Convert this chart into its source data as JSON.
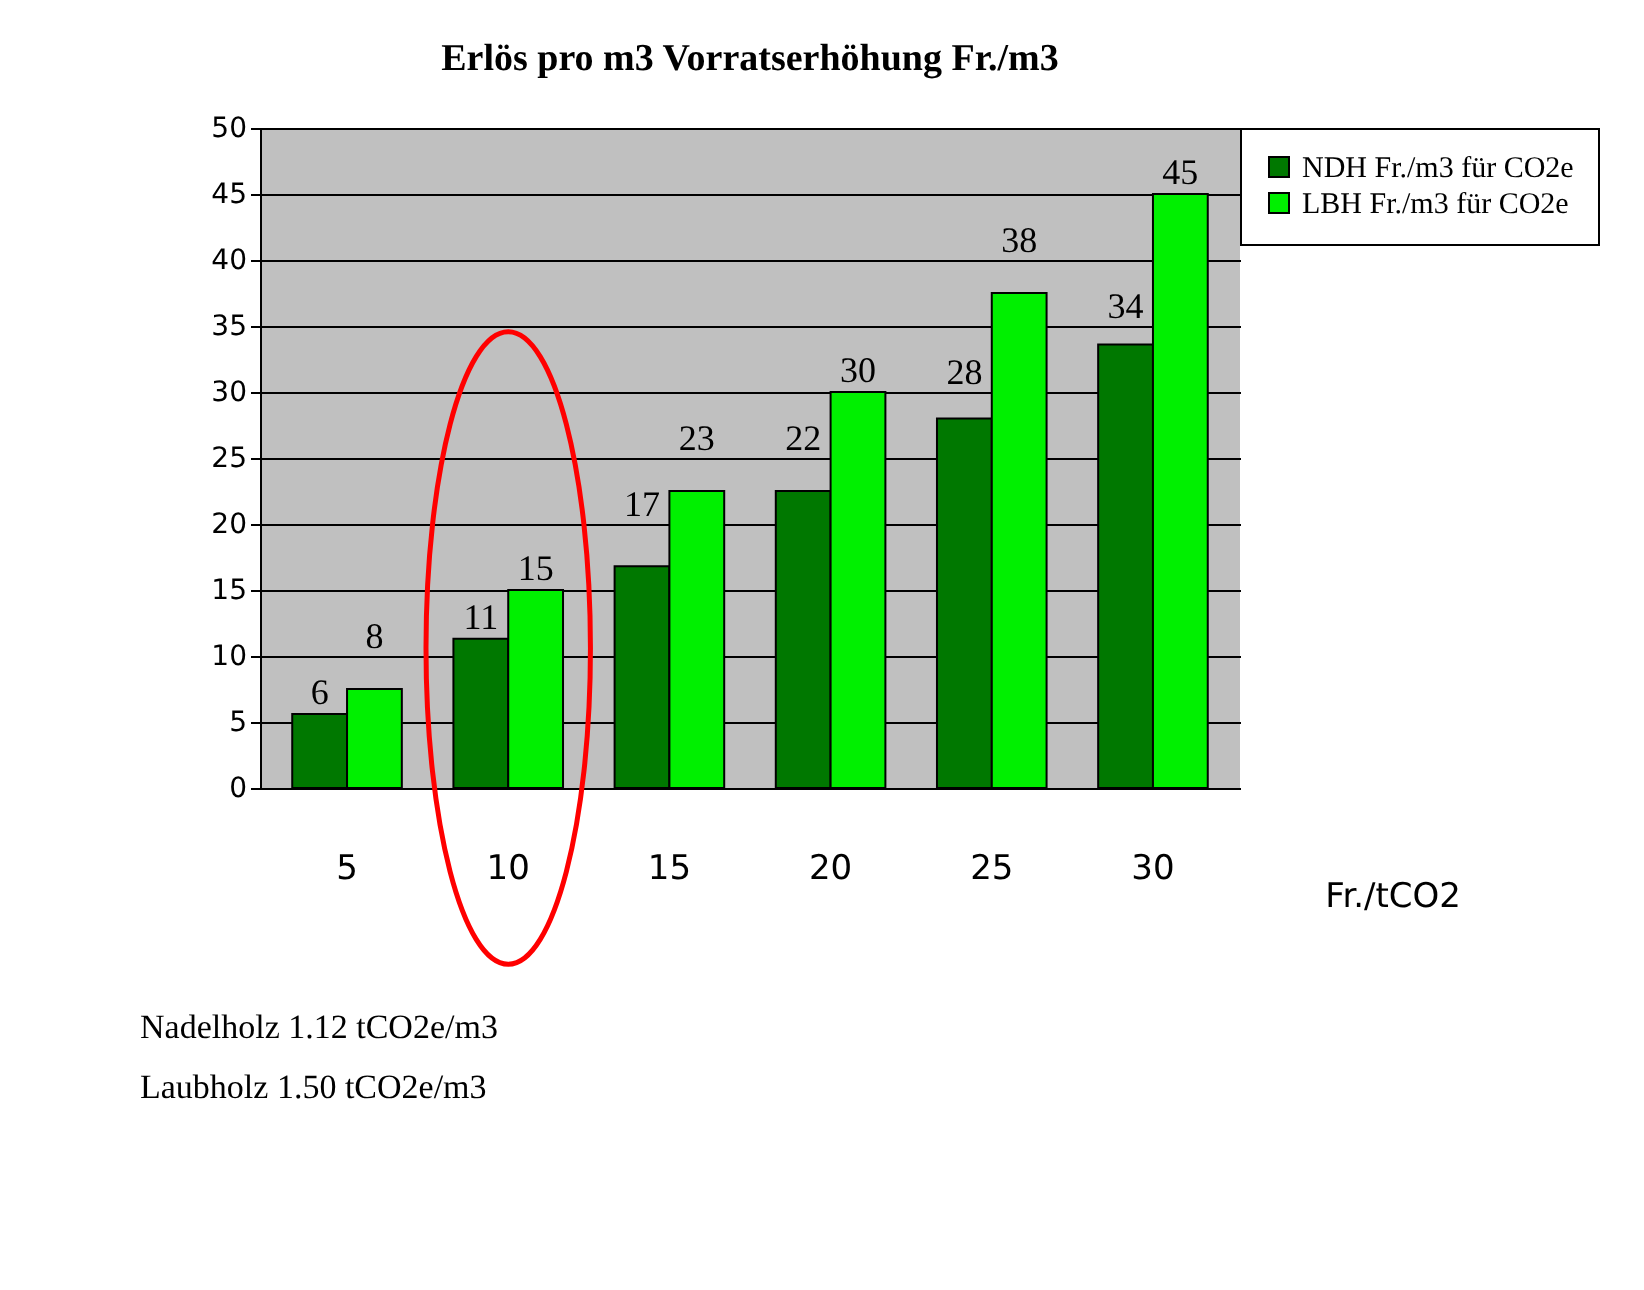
{
  "chart_data": {
    "type": "bar",
    "title": "Erlös pro m3 Vorratserhöhung Fr./m3",
    "xlabel": "Fr./tCO2",
    "categories": [
      "5",
      "10",
      "15",
      "20",
      "25",
      "30"
    ],
    "series": [
      {
        "name": "NDH Fr./m3 für CO2e",
        "color": "#007800",
        "values": [
          5.6,
          11.3,
          16.8,
          22.5,
          28,
          33.6
        ],
        "value_labels": [
          "6",
          "11",
          "17",
          "22",
          "28",
          "34"
        ]
      },
      {
        "name": "LBH Fr./m3 für CO2e",
        "color": "#00f000",
        "values": [
          7.5,
          15,
          22.5,
          30,
          37.5,
          45
        ],
        "value_labels": [
          "8",
          "15",
          "23",
          "30",
          "38",
          "45"
        ]
      }
    ],
    "ylim": [
      0,
      50
    ],
    "yticks": [
      0,
      5,
      10,
      15,
      20,
      25,
      30,
      35,
      40,
      45,
      50
    ],
    "grid": "y",
    "legend": "right",
    "annotations": [
      "Nadelholz  1.12 tCO2e/m3",
      "Laubholz   1.50 tCO2e/m3"
    ]
  }
}
